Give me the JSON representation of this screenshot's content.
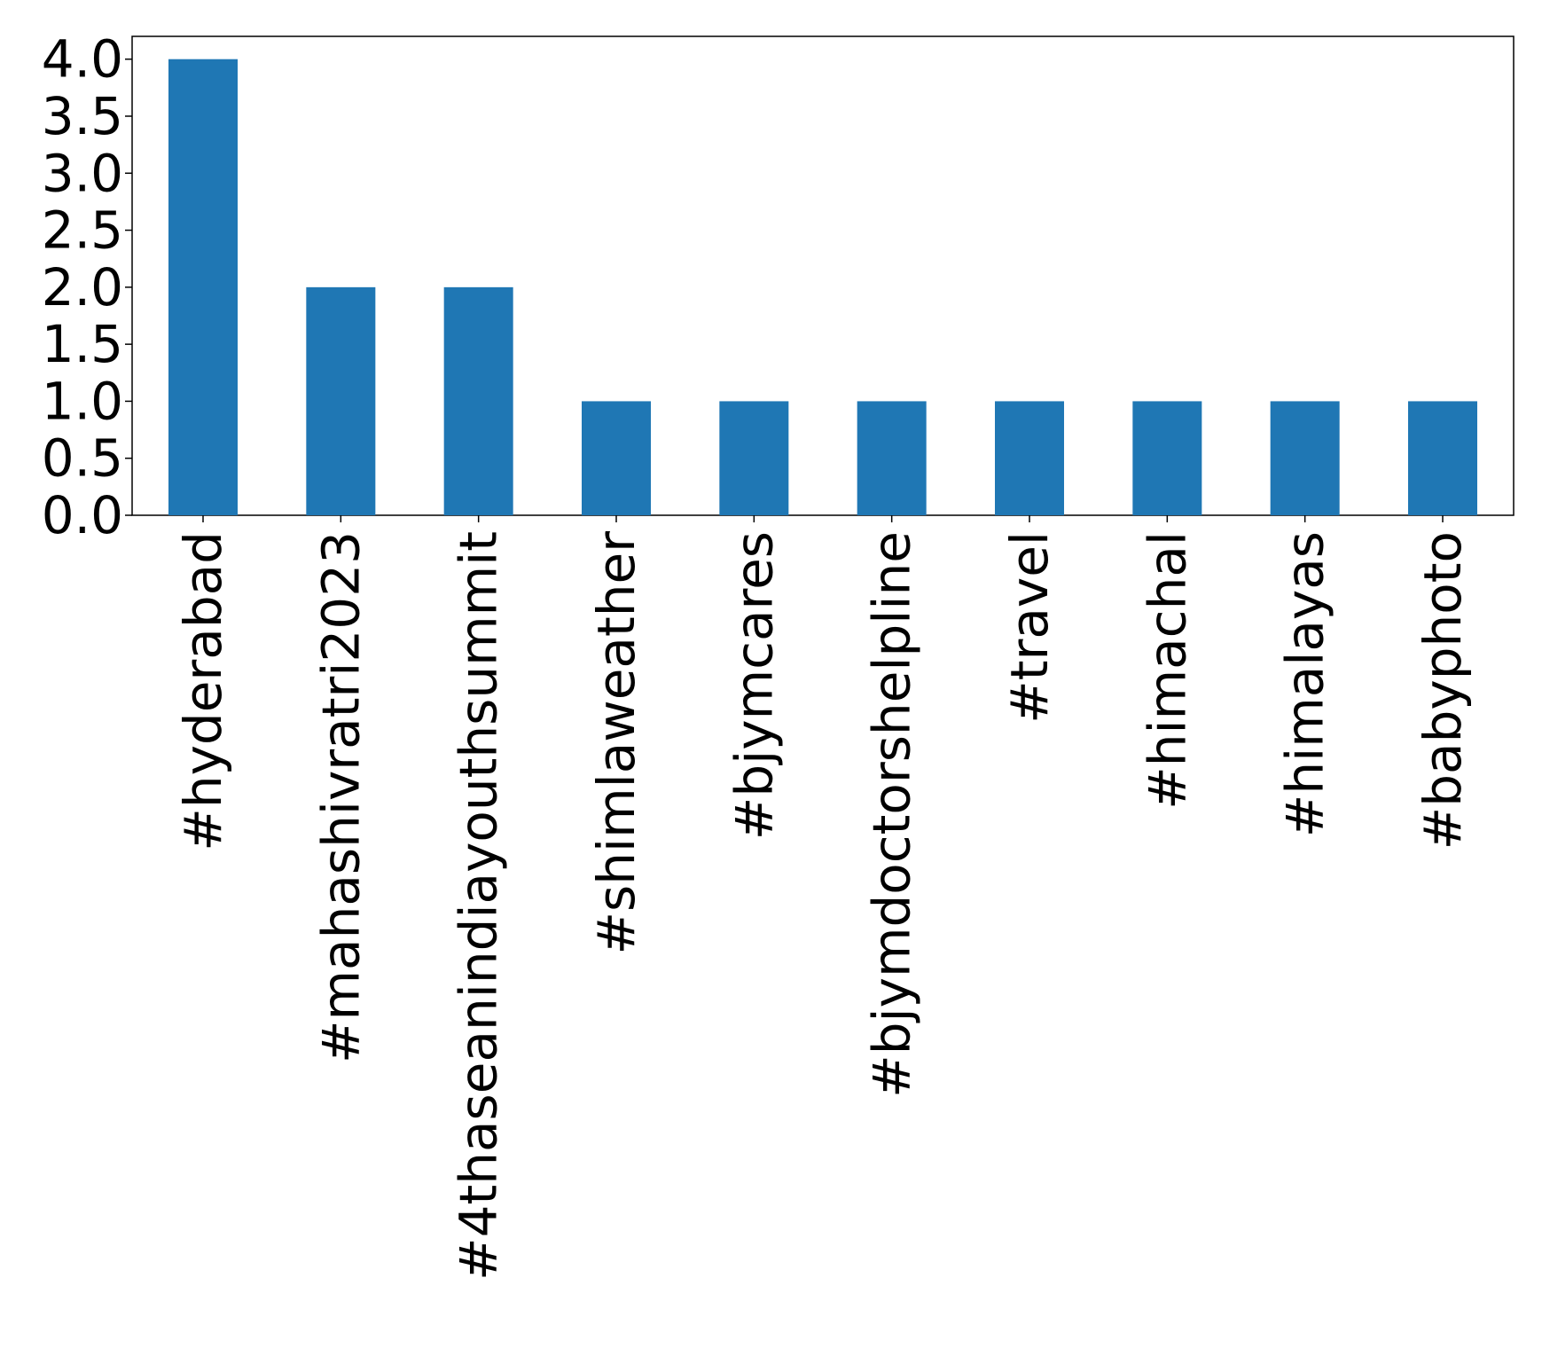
{
  "chart_data": {
    "type": "bar",
    "categories": [
      "#hyderabad",
      "#mahashivratri2023",
      "#4thaseanindiayouthsummit",
      "#shimlaweather",
      "#bjymcares",
      "#bjymdoctorshelpline",
      "#travel",
      "#himachal",
      "#himalayas",
      "#babyphoto"
    ],
    "values": [
      4,
      2,
      2,
      1,
      1,
      1,
      1,
      1,
      1,
      1
    ],
    "yticks": [
      "0.0",
      "0.5",
      "1.0",
      "1.5",
      "2.0",
      "2.5",
      "3.0",
      "3.5",
      "4.0"
    ],
    "ylim": [
      0,
      4.2
    ],
    "title": "",
    "xlabel": "",
    "ylabel": "",
    "bar_color": "#1f77b4",
    "grid": false,
    "legend": "none"
  }
}
